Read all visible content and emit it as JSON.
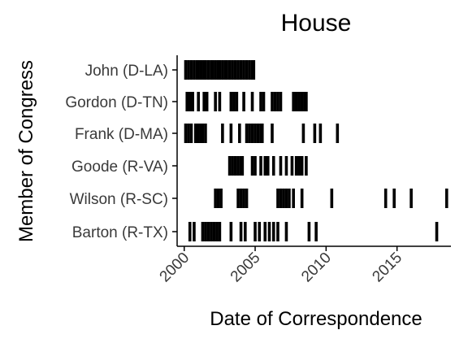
{
  "chart_data": {
    "type": "scatter",
    "mark": "vertical-tick",
    "title": "House",
    "xlabel": "Date of Correspondence",
    "ylabel": "Member of Congress",
    "xlim": [
      1999.5,
      2018.8
    ],
    "x_ticks": [
      2000,
      2005,
      2010,
      2015
    ],
    "tick_color": "#000000",
    "grid": false,
    "legend": "none",
    "categories": [
      "John (D-LA)",
      "Gordon (D-TN)",
      "Frank (D-MA)",
      "Goode (R-VA)",
      "Wilson (R-SC)",
      "Barton (R-TX)"
    ],
    "series": [
      {
        "category": "John (D-LA)",
        "x": [
          2000.1,
          2000.3,
          2000.5,
          2000.7,
          2000.9,
          2001.0,
          2001.2,
          2001.4,
          2001.5,
          2001.7,
          2001.9,
          2002.0,
          2002.2,
          2002.4,
          2002.5,
          2002.7,
          2002.9,
          2003.0,
          2003.2,
          2003.4,
          2003.6,
          2003.8,
          2004.0,
          2004.2,
          2004.4,
          2004.6,
          2004.8,
          2004.9
        ]
      },
      {
        "category": "Gordon (D-TN)",
        "x": [
          2000.2,
          2000.4,
          2000.6,
          2001.0,
          2001.4,
          2001.6,
          2002.2,
          2002.5,
          2003.3,
          2003.5,
          2003.7,
          2004.2,
          2004.8,
          2005.4,
          2005.6,
          2006.2,
          2006.4,
          2006.6,
          2006.8,
          2007.7,
          2007.9,
          2008.1,
          2008.3,
          2008.5,
          2008.6
        ]
      },
      {
        "category": "Frank (D-MA)",
        "x": [
          2000.1,
          2000.3,
          2000.5,
          2000.8,
          2001.0,
          2001.2,
          2001.3,
          2001.5,
          2002.7,
          2003.3,
          2003.9,
          2004.4,
          2004.6,
          2004.8,
          2005.0,
          2005.2,
          2005.4,
          2005.5,
          2006.2,
          2008.4,
          2009.2,
          2009.6,
          2010.8
        ]
      },
      {
        "category": "Goode (R-VA)",
        "x": [
          2003.2,
          2003.4,
          2003.6,
          2003.8,
          2004.0,
          2004.1,
          2004.8,
          2005.0,
          2005.4,
          2005.7,
          2005.9,
          2006.3,
          2006.8,
          2007.2,
          2007.6,
          2007.9,
          2008.1,
          2008.3,
          2008.6
        ]
      },
      {
        "category": "Wilson (R-SC)",
        "x": [
          2002.2,
          2002.4,
          2002.6,
          2003.8,
          2004.0,
          2004.2,
          2004.4,
          2006.6,
          2006.8,
          2007.0,
          2007.2,
          2007.4,
          2007.7,
          2008.3,
          2010.4,
          2014.2,
          2014.8,
          2016.0,
          2018.5
        ]
      },
      {
        "category": "Barton (R-TX)",
        "x": [
          2000.4,
          2000.7,
          2001.3,
          2001.5,
          2001.7,
          2001.9,
          2002.1,
          2002.3,
          2002.5,
          2003.3,
          2004.0,
          2004.3,
          2005.0,
          2005.3,
          2005.7,
          2006.0,
          2006.3,
          2006.6,
          2007.2,
          2008.8,
          2009.3,
          2017.8
        ]
      }
    ]
  }
}
